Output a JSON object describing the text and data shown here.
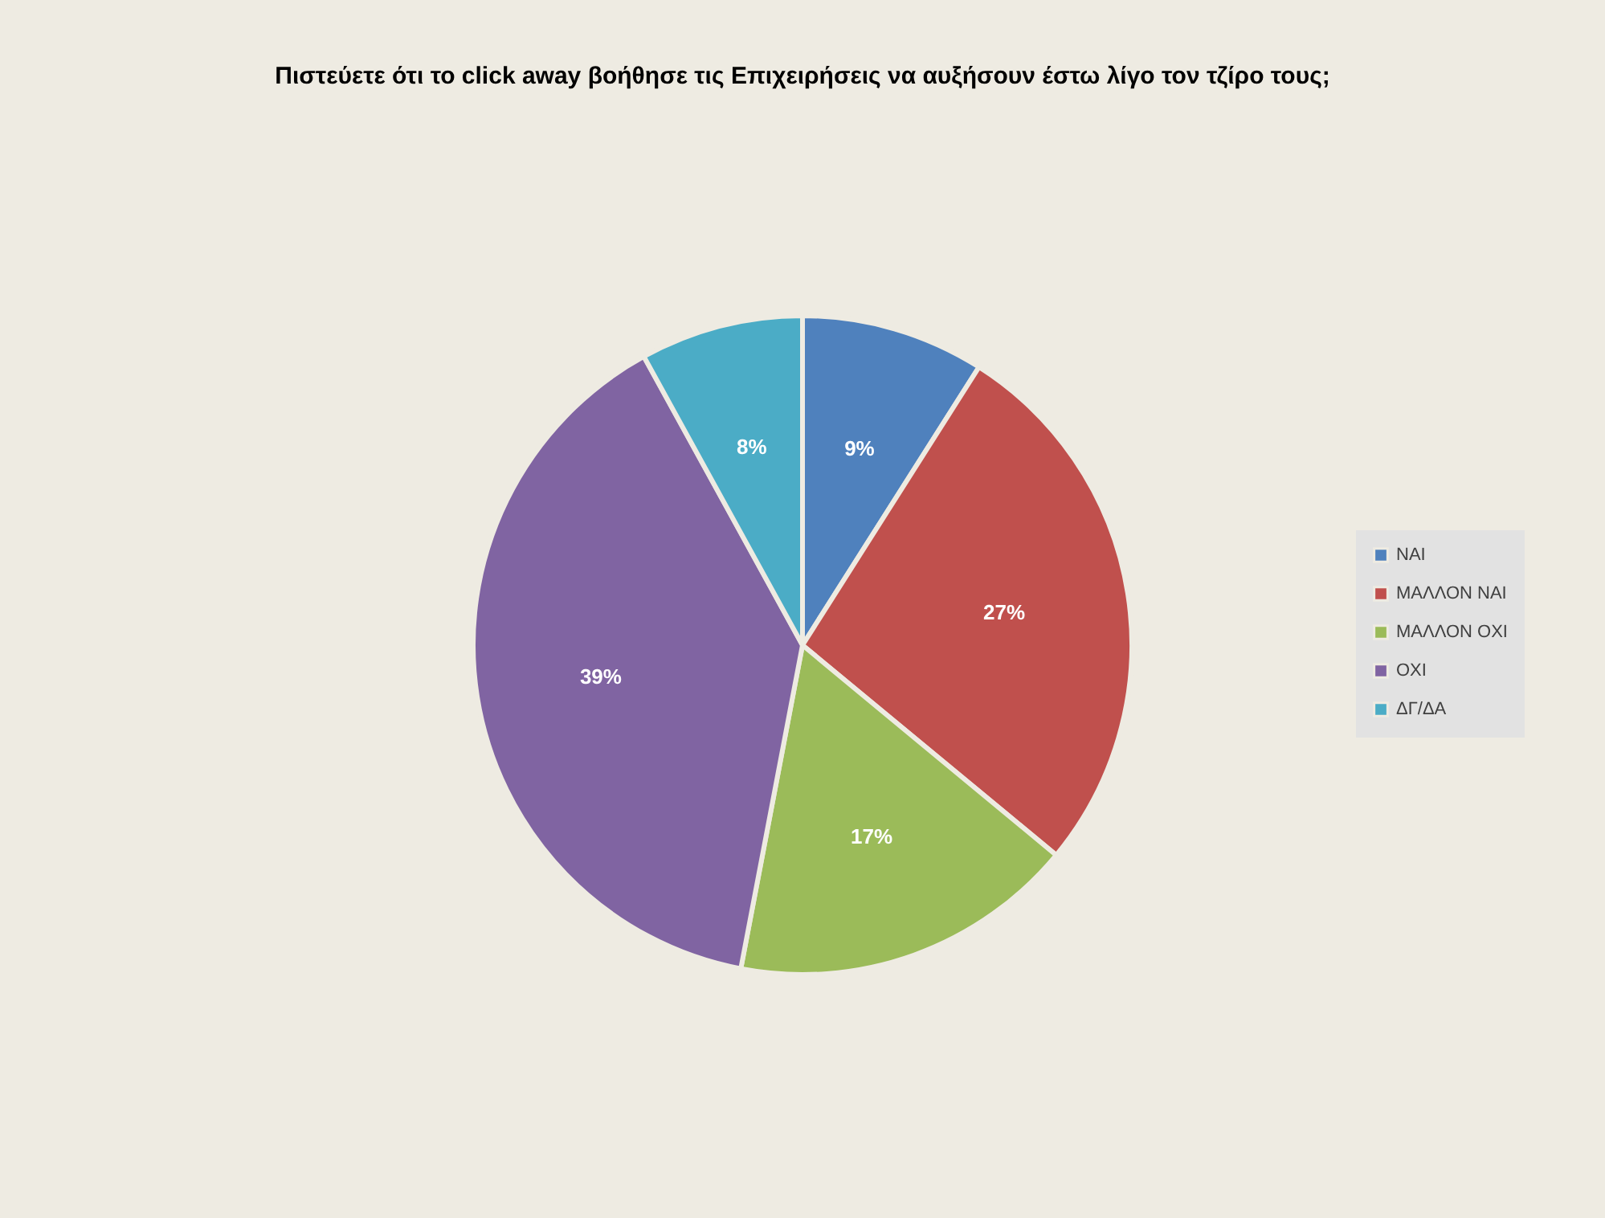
{
  "chart_data": {
    "type": "pie",
    "title": "Πιστεύετε ότι το click away βοήθησε τις Επιχειρήσεις να αυξήσουν έστω λίγο τον τζίρο τους;",
    "categories": [
      "ΝΑΙ",
      "ΜΑΛΛΟΝ ΝΑΙ",
      "ΜΑΛΛΟΝ ΟΧΙ",
      "ΟΧΙ",
      "ΔΓ/ΔΑ"
    ],
    "values": [
      9,
      27,
      17,
      39,
      8
    ],
    "colors": [
      "#4f81bd",
      "#c0504d",
      "#9bbb59",
      "#8064a2",
      "#4bacc6"
    ],
    "value_labels": [
      "9%",
      "27%",
      "17%",
      "39%",
      "8%"
    ],
    "legend": "right"
  }
}
